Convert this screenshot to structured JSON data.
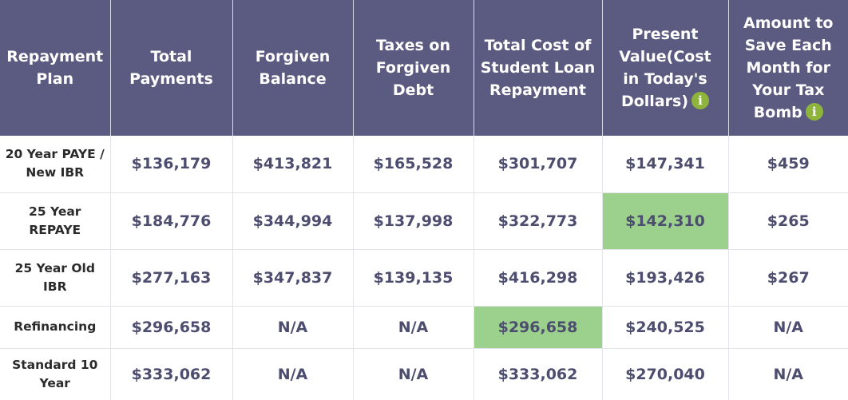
{
  "colors": {
    "header_bg": "#5b5a80",
    "highlight": "#9bd18d",
    "info_icon": "#8fb43c",
    "value_text": "#4d4d70"
  },
  "headers": [
    "Repayment Plan",
    "Total Payments",
    "Forgiven Balance",
    "Taxes on Forgiven Debt",
    "Total Cost of Student Loan Repayment",
    "Present Value(Cost in Today's Dollars)",
    "Amount to Save Each Month for Your Tax Bomb"
  ],
  "info_icon": "i",
  "rows": [
    [
      "20 Year PAYE / New IBR",
      "$136,179",
      "$413,821",
      "$165,528",
      "$301,707",
      "$147,341",
      "$459"
    ],
    [
      "25 Year REPAYE",
      "$184,776",
      "$344,994",
      "$137,998",
      "$322,773",
      "$142,310",
      "$265"
    ],
    [
      "25 Year Old IBR",
      "$277,163",
      "$347,837",
      "$139,135",
      "$416,298",
      "$193,426",
      "$267"
    ],
    [
      "Refinancing",
      "$296,658",
      "N/A",
      "N/A",
      "$296,658",
      "$240,525",
      "N/A"
    ],
    [
      "Standard 10 Year",
      "$333,062",
      "N/A",
      "N/A",
      "$333,062",
      "$270,040",
      "N/A"
    ]
  ]
}
